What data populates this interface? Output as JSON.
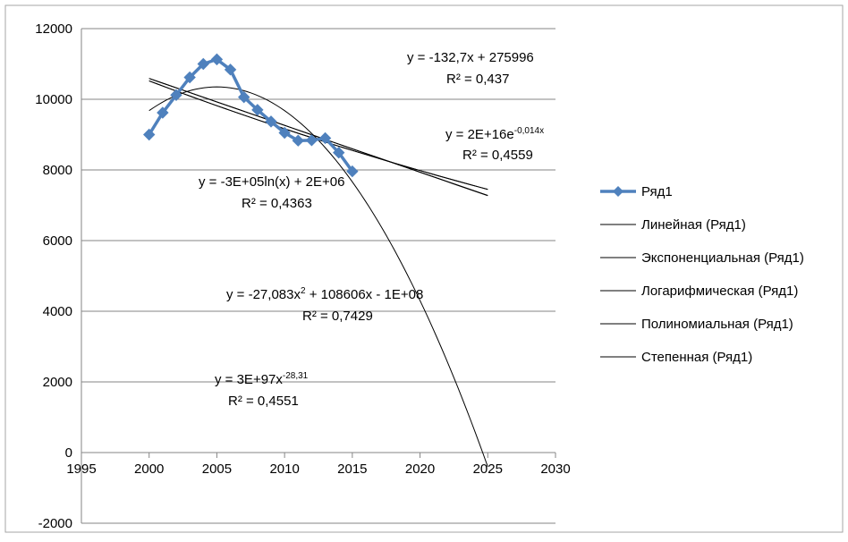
{
  "chart_data": {
    "type": "scatter",
    "title": "",
    "xlabel": "",
    "ylabel": "",
    "xlim": [
      1995,
      2030
    ],
    "ylim": [
      -2000,
      12000
    ],
    "x_ticks": [
      1995,
      2000,
      2005,
      2010,
      2015,
      2020,
      2025,
      2030
    ],
    "y_ticks": [
      -2000,
      0,
      2000,
      4000,
      6000,
      8000,
      10000,
      12000
    ],
    "x_tick_labels": [
      "1995",
      "2000",
      "2005",
      "2010",
      "2015",
      "2020",
      "2025",
      "2030"
    ],
    "y_tick_labels": [
      "-2000",
      "0",
      "2000",
      "4000",
      "6000",
      "8000",
      "10000",
      "12000"
    ],
    "grid": "horizontal",
    "legend_position": "right",
    "series": [
      {
        "name": "Ряд1",
        "color": "#4f81bd",
        "marker": "diamond",
        "x": [
          2000,
          2001,
          2002,
          2003,
          2004,
          2005,
          2006,
          2007,
          2008,
          2009,
          2010,
          2011,
          2012,
          2013,
          2014,
          2015
        ],
        "y": [
          9000,
          9620,
          10120,
          10620,
          11000,
          11130,
          10840,
          10060,
          9700,
          9370,
          9050,
          8830,
          8840,
          8900,
          8490,
          7960
        ]
      }
    ],
    "trendlines": [
      {
        "name": "Линейная (Ряд1)",
        "type": "linear",
        "color": "#000000",
        "equation_parts": [
          {
            "text": "y = -132,7x + 275996"
          }
        ],
        "r2": "R² = 0,437",
        "x_range": [
          2000,
          2025
        ],
        "y_range": [
          10590,
          7270
        ]
      },
      {
        "name": "Экспоненциальная (Ряд1)",
        "type": "exponential",
        "color": "#000000",
        "equation_parts": [
          {
            "text": "y = 2E+16e"
          },
          {
            "text": "-0,014x",
            "sup": true
          }
        ],
        "r2": "R² = 0,4559",
        "x_range": [
          2000,
          2025
        ],
        "y_range": [
          10520,
          7450
        ]
      },
      {
        "name": "Логарифмическая (Ряд1)",
        "type": "logarithmic",
        "color": "#000000",
        "equation_parts": [
          {
            "text": "y = -3E+05ln(x) + 2E+06"
          }
        ],
        "r2": "R² = 0,4363",
        "x_range": [
          2000,
          2025
        ],
        "y_range": [
          10590,
          7280
        ]
      },
      {
        "name": "Полиномиальная (Ряд1)",
        "type": "polynomial",
        "color": "#000000",
        "equation_parts": [
          {
            "text": "y = -27,083x"
          },
          {
            "text": "2",
            "sup": true
          },
          {
            "text": " + 108606x - 1E+08"
          }
        ],
        "r2": "R² = 0,7429",
        "x_range": [
          2000,
          2025
        ],
        "vertex": [
          2005,
          10350
        ],
        "y_at_end": -400
      },
      {
        "name": "Степенная (Ряд1)",
        "type": "power",
        "color": "#000000",
        "equation_parts": [
          {
            "text": "y = 3E+97x"
          },
          {
            "text": "-28,31",
            "sup": true
          }
        ],
        "r2": "R² = 0,4551",
        "x_range": [
          2000,
          2025
        ],
        "y_range": [
          10520,
          7450
        ]
      }
    ]
  }
}
